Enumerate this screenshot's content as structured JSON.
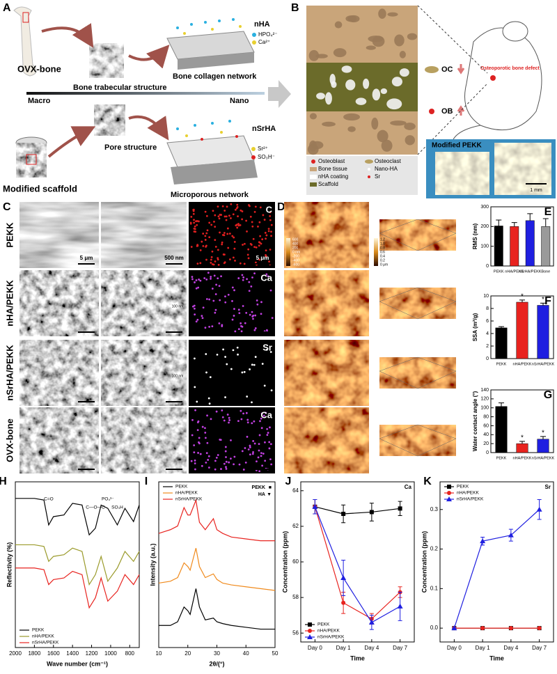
{
  "figure": {
    "a": {
      "label": "A",
      "nha": "nHA",
      "hpo4": "HPO₄²⁻",
      "ca": "Ca²⁺",
      "ovx_bone": "OVX-bone",
      "collagen": "Bone collagen network",
      "trabecular": "Bone trabecular structure",
      "macro": "Macro",
      "nano": "Nano",
      "pore": "Pore structure",
      "nsrha": "nSrHA",
      "sr": "Sr²⁺",
      "so3h": "SO₃H⁻",
      "scaffold": "Modified scaffold",
      "microporous": "Microporous network"
    },
    "b": {
      "label": "B",
      "oc": "OC",
      "ob": "OB",
      "defect": "Osteoporotic bone defect",
      "modified_pekk": "Modified PEKK",
      "scale": "1 mm",
      "legend": [
        "Osteoblast",
        "Osteoclast",
        "Bone tissue",
        "Nano-HA",
        "nHA coating",
        "Sr",
        "Scaffold"
      ]
    },
    "c": {
      "label": "C",
      "rows": [
        "PEKK",
        "nHA/PEKK",
        "nSrHA/PEKK",
        "OVX-bone"
      ],
      "elements": [
        "C",
        "Ca",
        "Sr",
        "Ca"
      ],
      "scale_bars": [
        "5 μm",
        "500 nm",
        "5 μm"
      ],
      "inset_scale": "100 nm"
    },
    "d": {
      "label": "D",
      "height_scale": [
        "600",
        "400",
        "200",
        "0 nm",
        "-200",
        "-400",
        "-600"
      ],
      "height_scale_3d": [
        "1.2",
        "1.0",
        "0.8",
        "0.6",
        "0.4",
        "0.2",
        "0 μm"
      ]
    }
  },
  "chart_data": [
    {
      "type": "bar",
      "panel_label": "E",
      "ylabel": "RMS (nm)",
      "categories": [
        "PEKK",
        "nHA/PEKK",
        "nSrHA/PEKK",
        "Bone"
      ],
      "values": [
        203,
        200,
        230,
        200
      ],
      "errors": [
        30,
        20,
        35,
        40
      ],
      "colors": [
        "#000000",
        "#e8231f",
        "#1f1fe0",
        "#9a9a9a"
      ],
      "ylim": [
        0,
        300
      ],
      "yticks": [
        0,
        100,
        200,
        300
      ]
    },
    {
      "type": "bar",
      "panel_label": "F",
      "ylabel": "SSA (m²/g)",
      "categories": [
        "PEKK",
        "nHA/PEKK",
        "nSrHA/PEKK"
      ],
      "values": [
        4.9,
        9.0,
        8.5
      ],
      "errors": [
        0.2,
        0.35,
        0.35
      ],
      "colors": [
        "#000000",
        "#e8231f",
        "#1f1fe0"
      ],
      "ylim": [
        0,
        10
      ],
      "yticks": [
        0,
        2,
        4,
        6,
        8,
        10
      ],
      "significance": [
        {
          "category": "nHA/PEKK",
          "label": "*"
        },
        {
          "category": "nSrHA/PEKK",
          "label": "*"
        }
      ]
    },
    {
      "type": "bar",
      "panel_label": "G",
      "ylabel": "Water contact angle (°)",
      "categories": [
        "PEKK",
        "nHA/PEKK",
        "nSrHA/PEKK"
      ],
      "values": [
        103,
        20,
        30
      ],
      "errors": [
        8,
        5,
        6
      ],
      "colors": [
        "#000000",
        "#e8231f",
        "#1f1fe0"
      ],
      "ylim": [
        0,
        140
      ],
      "yticks": [
        0,
        20,
        40,
        60,
        80,
        100,
        120,
        140
      ],
      "significance": [
        {
          "category": "nHA/PEKK",
          "label": "*"
        },
        {
          "category": "nSrHA/PEKK",
          "label": "*"
        }
      ]
    },
    {
      "type": "line",
      "panel_label": "H",
      "xlabel": "Wave number (cm⁻¹)",
      "ylabel": "Reflectivity (%)",
      "x": [
        2000,
        1800,
        1700,
        1650,
        1600,
        1490,
        1400,
        1300,
        1225,
        1160,
        1100,
        1030,
        930,
        850,
        760,
        700
      ],
      "series": [
        {
          "name": "PEKK",
          "color": "#000000",
          "values": [
            90,
            90,
            89,
            74,
            79,
            80,
            87,
            86,
            68,
            72,
            86,
            84,
            74,
            84,
            76,
            86
          ]
        },
        {
          "name": "nHA/PEKK",
          "color": "#9a9a2a",
          "values": [
            62,
            62,
            61,
            52,
            55,
            56,
            60,
            58,
            38,
            44,
            55,
            40,
            48,
            58,
            52,
            58
          ]
        },
        {
          "name": "nSrHA/PEKK",
          "color": "#e8231f",
          "values": [
            48,
            48,
            47,
            38,
            41,
            42,
            46,
            44,
            24,
            30,
            42,
            28,
            34,
            44,
            38,
            44
          ]
        }
      ],
      "xlim": [
        2000,
        700
      ],
      "xticks": [
        2000,
        1800,
        1600,
        1400,
        1200,
        1000,
        800
      ],
      "ylim": [
        0,
        100
      ],
      "legend": "lower left",
      "annotations": [
        {
          "text": "C=O",
          "x": 1650
        },
        {
          "text": "C—O—C",
          "x": 1160
        },
        {
          "text": "PO₄³⁻",
          "x": 1030
        },
        {
          "text": "SO₃H",
          "x": 930
        }
      ]
    },
    {
      "type": "line",
      "panel_label": "I",
      "xlabel": "2θ/(°)",
      "ylabel": "Intensity (a.u.)",
      "x": [
        10,
        14,
        16.5,
        18.7,
        20,
        20.8,
        22.8,
        24,
        26,
        28.8,
        30,
        32,
        35,
        40,
        45,
        50
      ],
      "series": [
        {
          "name": "PEKK",
          "color": "#000000",
          "values": [
            12,
            12,
            14,
            22,
            20,
            18,
            32,
            22,
            15,
            16,
            14,
            13,
            12,
            11,
            10,
            10
          ]
        },
        {
          "name": "nHA/PEKK",
          "color": "#f08a1c",
          "values": [
            35,
            36,
            38,
            46,
            44,
            42,
            54,
            44,
            38,
            40,
            37,
            35,
            34,
            33,
            32,
            31
          ]
        },
        {
          "name": "nSrHA/PEKK",
          "color": "#e8231f",
          "values": [
            62,
            64,
            66,
            76,
            72,
            72,
            80,
            68,
            64,
            70,
            64,
            62,
            60,
            59,
            58,
            58
          ]
        }
      ],
      "xlim": [
        10,
        50
      ],
      "xticks": [
        10,
        20,
        30,
        40,
        50
      ],
      "ylim": [
        0,
        90
      ],
      "legend": "upper left",
      "peak_markers": [
        {
          "name": "PEKK",
          "symbol": "■"
        },
        {
          "name": "HA",
          "symbol": "▼"
        }
      ]
    },
    {
      "type": "line",
      "panel_label": "J",
      "xlabel": "Time",
      "ylabel": "Concentration (ppm)",
      "element": "Ca",
      "categories": [
        "Day 0",
        "Day 1",
        "Day 4",
        "Day 7"
      ],
      "series": [
        {
          "name": "PEKK",
          "color": "#000000",
          "marker": "square",
          "values": [
            63.1,
            62.7,
            62.8,
            63.0
          ],
          "errors": [
            0.4,
            0.5,
            0.5,
            0.4
          ]
        },
        {
          "name": "nHA/PEKK",
          "color": "#e8231f",
          "marker": "circle",
          "values": [
            63.1,
            57.7,
            56.8,
            58.3
          ],
          "errors": [
            0.4,
            0.6,
            0.3,
            0.3
          ]
        },
        {
          "name": "nSrHA/PEKK",
          "color": "#1f1fe0",
          "marker": "triangle",
          "values": [
            63.1,
            59.1,
            56.6,
            57.5
          ],
          "errors": [
            0.4,
            1.0,
            0.4,
            0.8
          ]
        }
      ],
      "ylim": [
        55.5,
        64.5
      ],
      "yticks": [
        56,
        58,
        60,
        62,
        64
      ],
      "legend": "lower left"
    },
    {
      "type": "line",
      "panel_label": "K",
      "xlabel": "Time",
      "ylabel": "Concentration (ppm)",
      "element": "Sr",
      "categories": [
        "Day 0",
        "Day 1",
        "Day 4",
        "Day 7"
      ],
      "series": [
        {
          "name": "PEKK",
          "color": "#000000",
          "marker": "square",
          "values": [
            0,
            0,
            0,
            0
          ],
          "errors": [
            0,
            0,
            0,
            0
          ]
        },
        {
          "name": "nHA/PEKK",
          "color": "#e8231f",
          "marker": "circle",
          "values": [
            0,
            0,
            0,
            0
          ],
          "errors": [
            0,
            0,
            0,
            0
          ]
        },
        {
          "name": "nSrHA/PEKK",
          "color": "#1f1fe0",
          "marker": "triangle",
          "values": [
            0,
            0.22,
            0.235,
            0.3
          ],
          "errors": [
            0,
            0.01,
            0.015,
            0.025
          ]
        }
      ],
      "ylim": [
        -0.035,
        0.37
      ],
      "yticks": [
        {
          "value": 0,
          "label": "0.0"
        },
        0.1,
        0.2,
        0.3
      ],
      "legend": "upper left"
    }
  ]
}
